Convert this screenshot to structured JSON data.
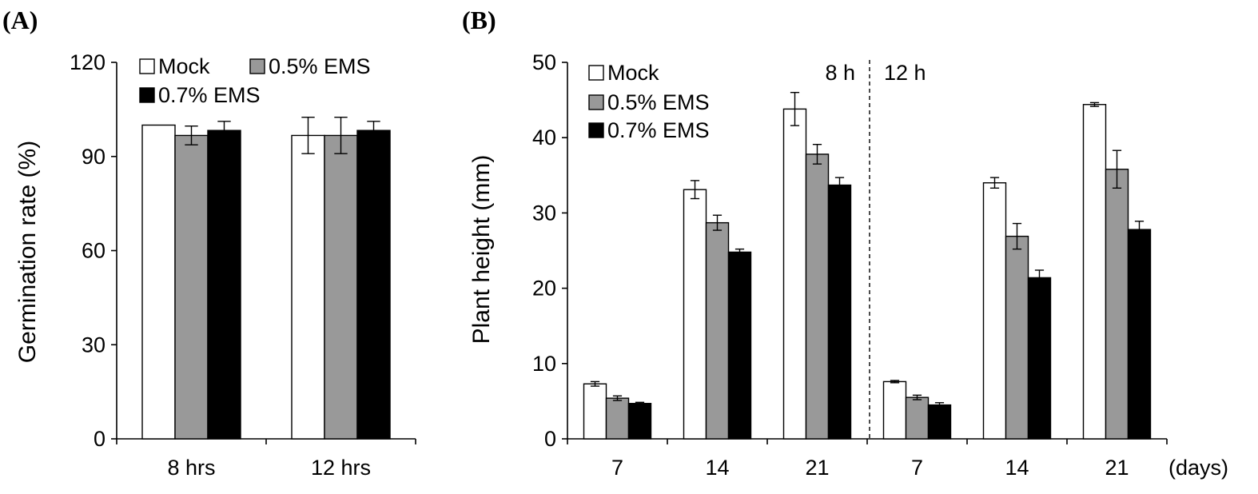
{
  "colors": {
    "Mock": "#ffffff",
    "0.5% EMS": "#999999",
    "0.7% EMS": "#000000"
  },
  "chart_data": [
    {
      "panel": "(A)",
      "type": "bar",
      "ylabel": "Germination rate (%)",
      "xlabel": "",
      "ylim": [
        0,
        120
      ],
      "yticks": [
        0,
        30,
        60,
        90,
        120
      ],
      "categories": [
        "8 hrs",
        "12 hrs"
      ],
      "legend": {
        "placement": "top-left",
        "entries": [
          "Mock",
          "0.5% EMS",
          "0.7% EMS"
        ]
      },
      "series": [
        {
          "name": "Mock",
          "values": [
            100,
            96.7
          ],
          "errors": [
            0,
            5.8
          ]
        },
        {
          "name": "0.5% EMS",
          "values": [
            96.7,
            96.7
          ],
          "errors": [
            3.0,
            5.8
          ]
        },
        {
          "name": "0.7% EMS",
          "values": [
            98.3,
            98.3
          ],
          "errors": [
            2.9,
            2.9
          ]
        }
      ]
    },
    {
      "panel": "(B)",
      "type": "bar",
      "ylabel": "Plant height (mm)",
      "xlabel": "(days)",
      "ylim": [
        0,
        50
      ],
      "yticks": [
        0,
        10,
        20,
        30,
        40,
        50
      ],
      "categories": [
        "7",
        "14",
        "21",
        "7",
        "14",
        "21"
      ],
      "groups": [
        "8 h",
        "12 h"
      ],
      "legend": {
        "placement": "top-left",
        "entries": [
          "Mock",
          "0.5% EMS",
          "0.7% EMS"
        ]
      },
      "series": [
        {
          "name": "Mock",
          "values": [
            7.3,
            33.1,
            43.8,
            7.6,
            34.0,
            44.4
          ],
          "errors": [
            0.3,
            1.2,
            2.2,
            0.15,
            0.7,
            0.25
          ]
        },
        {
          "name": "0.5% EMS",
          "values": [
            5.4,
            28.7,
            37.8,
            5.5,
            26.9,
            35.8
          ],
          "errors": [
            0.3,
            1.0,
            1.3,
            0.3,
            1.7,
            2.5
          ]
        },
        {
          "name": "0.7% EMS",
          "values": [
            4.7,
            24.8,
            33.7,
            4.5,
            21.4,
            27.8
          ],
          "errors": [
            0.15,
            0.4,
            1.0,
            0.3,
            1.0,
            1.1
          ]
        }
      ]
    }
  ]
}
